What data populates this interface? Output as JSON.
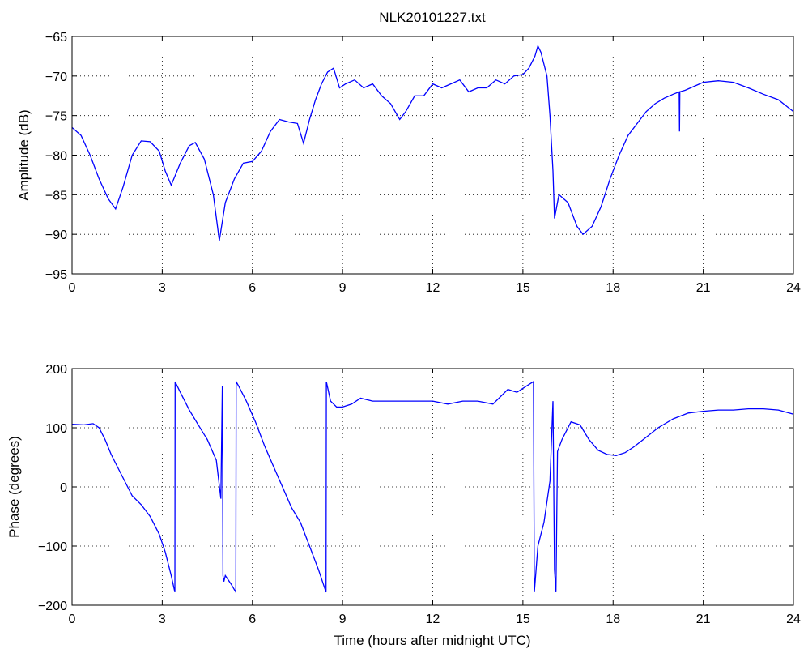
{
  "chart_data": [
    {
      "type": "line",
      "title": "NLK20101227.txt",
      "xlabel": "",
      "ylabel": "Amplitude (dB)",
      "xlim": [
        0,
        24
      ],
      "ylim": [
        -95,
        -65
      ],
      "xticks": [
        0,
        3,
        6,
        9,
        12,
        15,
        18,
        21,
        24
      ],
      "yticks": [
        -95,
        -90,
        -85,
        -80,
        -75,
        -70,
        -65
      ],
      "grid": true,
      "line_color": "#0000ff",
      "series": [
        {
          "x": [
            0,
            0.3,
            0.6,
            0.9,
            1.2,
            1.45,
            1.7,
            2.0,
            2.3,
            2.6,
            2.9,
            3.1,
            3.3,
            3.6,
            3.9,
            4.1,
            4.4,
            4.7,
            4.9,
            5.1,
            5.4,
            5.7,
            6.0,
            6.3,
            6.6,
            6.9,
            7.2,
            7.5,
            7.7,
            7.9,
            8.1,
            8.3,
            8.5,
            8.7,
            8.9,
            9.1,
            9.4,
            9.7,
            10.0,
            10.3,
            10.6,
            10.9,
            11.1,
            11.4,
            11.7,
            12.0,
            12.3,
            12.6,
            12.9,
            13.2,
            13.5,
            13.8,
            14.1,
            14.4,
            14.7,
            15.0,
            15.2,
            15.4,
            15.5,
            15.6,
            15.8,
            15.9,
            16.0,
            16.05,
            16.2,
            16.5,
            16.8,
            17.0,
            17.3,
            17.6,
            17.9,
            18.2,
            18.5,
            18.8,
            19.1,
            19.4,
            19.7,
            20.0,
            20.2,
            20.21,
            20.22,
            20.4,
            20.7,
            21.0,
            21.5,
            22.0,
            22.5,
            23.0,
            23.5,
            24.0
          ],
          "y": [
            -76.5,
            -77.5,
            -80,
            -83,
            -85.5,
            -86.8,
            -84,
            -80,
            -78.2,
            -78.3,
            -79.5,
            -82,
            -83.8,
            -81,
            -78.8,
            -78.4,
            -80.5,
            -85,
            -90.8,
            -86,
            -83,
            -81,
            -80.8,
            -79.5,
            -77,
            -75.5,
            -75.8,
            -76,
            -78.5,
            -75.5,
            -73,
            -71,
            -69.5,
            -69,
            -71.5,
            -71,
            -70.5,
            -71.5,
            -71,
            -72.5,
            -73.5,
            -75.5,
            -74.5,
            -72.5,
            -72.5,
            -71,
            -71.5,
            -71,
            -70.5,
            -72,
            -71.5,
            -71.5,
            -70.5,
            -71,
            -70,
            -69.8,
            -69,
            -67.5,
            -66.2,
            -67,
            -70,
            -75,
            -82,
            -88,
            -85,
            -86,
            -89,
            -90,
            -89,
            -86.5,
            -83,
            -80,
            -77.5,
            -76,
            -74.5,
            -73.5,
            -72.8,
            -72.3,
            -72,
            -77,
            -72,
            -71.8,
            -71.3,
            -70.8,
            -70.6,
            -70.8,
            -71.5,
            -72.3,
            -73,
            -74.5
          ]
        }
      ]
    },
    {
      "type": "line",
      "title": "",
      "xlabel": "Time (hours after midnight UTC)",
      "ylabel": "Phase (degrees)",
      "xlim": [
        0,
        24
      ],
      "ylim": [
        -200,
        200
      ],
      "xticks": [
        0,
        3,
        6,
        9,
        12,
        15,
        18,
        21,
        24
      ],
      "yticks": [
        -200,
        -100,
        0,
        100,
        200
      ],
      "grid": true,
      "line_color": "#0000ff",
      "series": [
        {
          "x": [
            0,
            0.4,
            0.7,
            0.9,
            1.1,
            1.3,
            1.5,
            1.7,
            2.0,
            2.3,
            2.6,
            2.9,
            3.1,
            3.3,
            3.42,
            3.43,
            3.6,
            3.9,
            4.2,
            4.5,
            4.8,
            4.95,
            5.0,
            5.02,
            5.05,
            5.1,
            5.3,
            5.45,
            5.46,
            5.55,
            5.8,
            6.1,
            6.4,
            6.7,
            7.0,
            7.3,
            7.6,
            7.9,
            8.2,
            8.45,
            8.46,
            8.6,
            8.8,
            9.0,
            9.3,
            9.6,
            10.0,
            10.5,
            11.0,
            11.5,
            12.0,
            12.5,
            13.0,
            13.5,
            14.0,
            14.5,
            14.8,
            15.1,
            15.35,
            15.38,
            15.5,
            15.7,
            15.9,
            16.0,
            16.05,
            16.1,
            16.15,
            16.3,
            16.6,
            16.9,
            17.2,
            17.5,
            17.8,
            18.1,
            18.4,
            18.7,
            19.0,
            19.5,
            20.0,
            20.5,
            21.0,
            21.5,
            22.0,
            22.5,
            23.0,
            23.5,
            24.0
          ],
          "y": [
            106,
            105,
            107,
            100,
            80,
            55,
            35,
            15,
            -15,
            -30,
            -50,
            -80,
            -110,
            -150,
            -178,
            178,
            160,
            130,
            105,
            80,
            45,
            -20,
            170,
            -150,
            -160,
            -150,
            -165,
            -178,
            178,
            170,
            145,
            110,
            70,
            35,
            0,
            -35,
            -60,
            -100,
            -140,
            -178,
            178,
            145,
            135,
            135,
            140,
            150,
            145,
            145,
            145,
            145,
            145,
            140,
            145,
            145,
            140,
            165,
            160,
            170,
            178,
            -178,
            -100,
            -60,
            10,
            145,
            -140,
            -178,
            60,
            80,
            110,
            105,
            80,
            62,
            55,
            53,
            58,
            68,
            80,
            100,
            115,
            125,
            128,
            130,
            130,
            132,
            132,
            130,
            123
          ]
        }
      ]
    }
  ]
}
